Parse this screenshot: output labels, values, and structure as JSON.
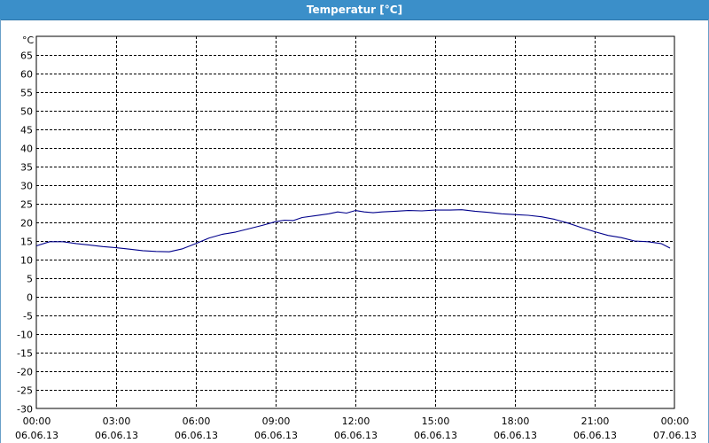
{
  "window": {
    "title": "Temperatur [°C]"
  },
  "chart_data": {
    "type": "line",
    "title": "Temperatur [°C]",
    "ylabel": "°C",
    "ylim": [
      -30,
      70
    ],
    "yticks": [
      65,
      60,
      55,
      50,
      45,
      40,
      35,
      30,
      25,
      20,
      15,
      10,
      5,
      0,
      -5,
      -10,
      -15,
      -20,
      -25,
      -30
    ],
    "xlim": [
      "2013-06-06 00:00",
      "2013-06-07 00:00"
    ],
    "x_tick_labels": [
      {
        "time": "00:00",
        "date": "06.06.13"
      },
      {
        "time": "03:00",
        "date": "06.06.13"
      },
      {
        "time": "06:00",
        "date": "06.06.13"
      },
      {
        "time": "09:00",
        "date": "06.06.13"
      },
      {
        "time": "12:00",
        "date": "06.06.13"
      },
      {
        "time": "15:00",
        "date": "06.06.13"
      },
      {
        "time": "18:00",
        "date": "06.06.13"
      },
      {
        "time": "21:00",
        "date": "06.06.13"
      },
      {
        "time": "00:00",
        "date": "07.06.13"
      }
    ],
    "grid": true,
    "line_color": "#00008b",
    "series": [
      {
        "x": [
          "2013-06-06 00:00",
          "2013-06-06 00:30",
          "2013-06-06 01:00",
          "2013-06-06 01:30",
          "2013-06-06 02:00",
          "2013-06-06 02:30",
          "2013-06-06 03:00",
          "2013-06-06 03:30",
          "2013-06-06 04:00",
          "2013-06-06 04:30",
          "2013-06-06 05:00",
          "2013-06-06 05:30",
          "2013-06-06 06:00",
          "2013-06-06 06:30",
          "2013-06-06 07:00",
          "2013-06-06 07:30",
          "2013-06-06 08:00",
          "2013-06-06 08:30",
          "2013-06-06 09:00",
          "2013-06-06 09:20",
          "2013-06-06 09:40",
          "2013-06-06 10:00",
          "2013-06-06 10:30",
          "2013-06-06 11:00",
          "2013-06-06 11:20",
          "2013-06-06 11:40",
          "2013-06-06 12:00",
          "2013-06-06 12:20",
          "2013-06-06 12:40",
          "2013-06-06 13:00",
          "2013-06-06 13:30",
          "2013-06-06 14:00",
          "2013-06-06 14:30",
          "2013-06-06 15:00",
          "2013-06-06 15:30",
          "2013-06-06 16:00",
          "2013-06-06 16:30",
          "2013-06-06 17:00",
          "2013-06-06 17:30",
          "2013-06-06 18:00",
          "2013-06-06 18:30",
          "2013-06-06 19:00",
          "2013-06-06 19:30",
          "2013-06-06 20:00",
          "2013-06-06 20:30",
          "2013-06-06 21:00",
          "2013-06-06 21:30",
          "2013-06-06 22:00",
          "2013-06-06 22:30",
          "2013-06-06 23:00",
          "2013-06-06 23:30",
          "2013-06-06 23:50"
        ],
        "y": [
          13.7,
          14.8,
          14.8,
          14.3,
          13.9,
          13.5,
          13.2,
          12.8,
          12.4,
          12.2,
          12.1,
          12.9,
          14.3,
          15.8,
          16.8,
          17.4,
          18.3,
          19.2,
          20.2,
          20.6,
          20.5,
          21.3,
          21.8,
          22.3,
          22.8,
          22.5,
          23.2,
          22.8,
          22.6,
          22.8,
          23.0,
          23.2,
          23.1,
          23.3,
          23.3,
          23.4,
          23.0,
          22.7,
          22.3,
          22.1,
          21.9,
          21.5,
          20.8,
          19.8,
          18.6,
          17.5,
          16.5,
          15.9,
          15.0,
          14.8,
          14.3,
          13.1
        ]
      }
    ]
  }
}
